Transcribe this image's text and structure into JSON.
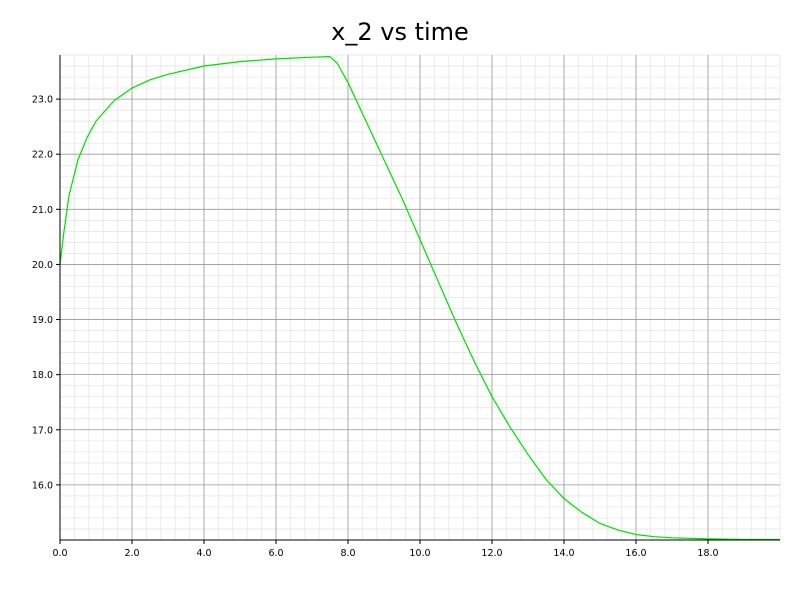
{
  "chart_data": {
    "type": "line",
    "title": "x_2 vs time",
    "xlabel": "",
    "ylabel": "",
    "xlim": [
      0,
      20
    ],
    "ylim": [
      15.0,
      23.8
    ],
    "grid": true,
    "x_ticks": [
      "0.0",
      "2.0",
      "4.0",
      "6.0",
      "8.0",
      "10.0",
      "12.0",
      "14.0",
      "16.0",
      "18.0"
    ],
    "y_ticks": [
      "16.0",
      "17.0",
      "18.0",
      "19.0",
      "20.0",
      "21.0",
      "22.0",
      "23.0"
    ],
    "series": [
      {
        "color": "#00dd00",
        "x": [
          0,
          0.1,
          0.25,
          0.5,
          0.75,
          1.0,
          1.5,
          2.0,
          2.5,
          3.0,
          4.0,
          5.0,
          6.0,
          7.0,
          7.5,
          7.7,
          8.0,
          8.5,
          9.0,
          9.5,
          10.0,
          10.5,
          11.0,
          11.5,
          12.0,
          12.5,
          13.0,
          13.5,
          14.0,
          14.5,
          15.0,
          15.5,
          16.0,
          16.5,
          17.0,
          18.0,
          19.0,
          20.0
        ],
        "y": [
          20.0,
          20.55,
          21.25,
          21.9,
          22.3,
          22.6,
          22.97,
          23.2,
          23.35,
          23.45,
          23.6,
          23.68,
          23.73,
          23.76,
          23.77,
          23.65,
          23.3,
          22.6,
          21.9,
          21.2,
          20.45,
          19.7,
          18.95,
          18.25,
          17.6,
          17.05,
          16.55,
          16.1,
          15.75,
          15.5,
          15.3,
          15.18,
          15.1,
          15.06,
          15.04,
          15.02,
          15.01,
          15.01
        ]
      }
    ]
  }
}
